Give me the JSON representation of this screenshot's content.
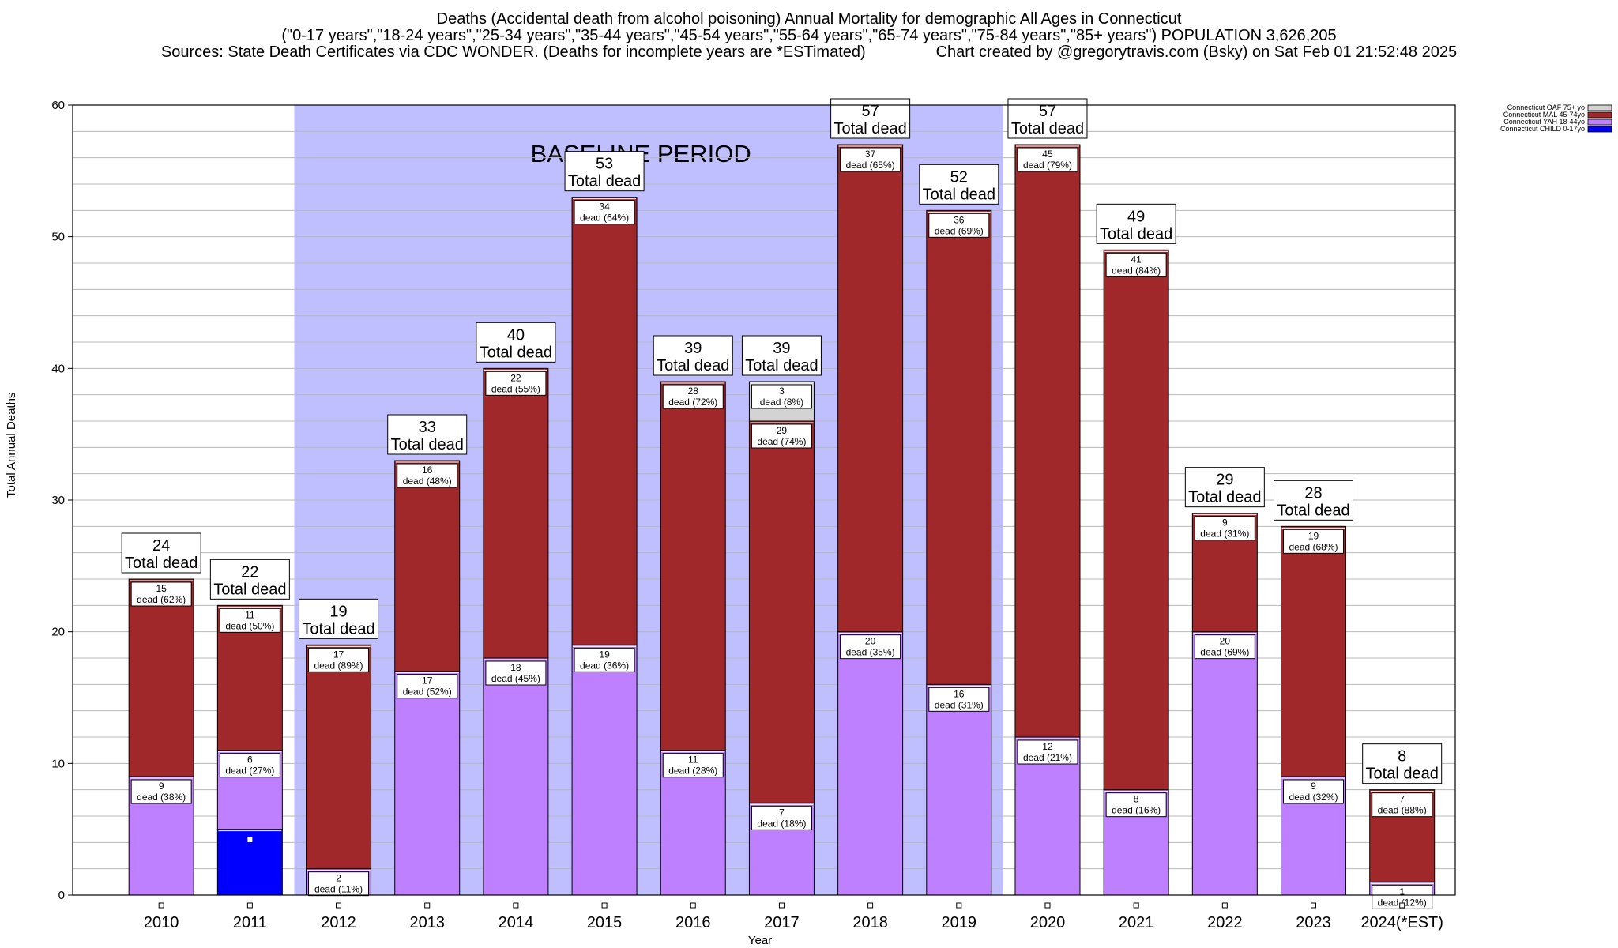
{
  "title_lines": [
    "Deaths (Accidental death from alcohol poisoning) Annual Mortality for demographic All Ages in Connecticut",
    "(\"0-17 years\",\"18-24 years\",\"25-34 years\",\"35-44 years\",\"45-54 years\",\"55-64 years\",\"65-74 years\",\"75-84 years\",\"85+ years\") POPULATION 3,626,205",
    "Sources: State Death Certificates via CDC WONDER. (Deaths for incomplete years are *ESTimated)                Chart created by @gregorytravis.com (Bsky) on Sat Feb 01 21:52:48 2025"
  ],
  "chart_data": {
    "type": "bar",
    "stacked": true,
    "xlabel": "Year",
    "ylabel": "Total Annual Deaths",
    "ylim": [
      0,
      60
    ],
    "yticks": [
      0,
      10,
      20,
      30,
      40,
      50,
      60
    ],
    "grid": true,
    "legend_position": "top-right",
    "baseline_label": "BASELINE PERIOD",
    "baseline_range": [
      "2012",
      "2019"
    ],
    "categories": [
      "2010",
      "2011",
      "2012",
      "2013",
      "2014",
      "2015",
      "2016",
      "2017",
      "2018",
      "2019",
      "2020",
      "2021",
      "2022",
      "2023",
      "2024(*EST)"
    ],
    "totals": [
      24,
      22,
      19,
      33,
      40,
      53,
      39,
      39,
      57,
      52,
      57,
      49,
      29,
      28,
      8
    ],
    "total_label": "Total dead",
    "series": [
      {
        "name": "Connecticut CHILD 0-17yo",
        "color": "#0000ff",
        "values": [
          0,
          5,
          0,
          0,
          0,
          0,
          0,
          0,
          0,
          0,
          0,
          0,
          0,
          0,
          0
        ],
        "labels": [
          null,
          null,
          null,
          null,
          null,
          null,
          null,
          null,
          null,
          null,
          null,
          null,
          null,
          null,
          null
        ]
      },
      {
        "name": "Connecticut YAH 18-44yo",
        "color": "#bf80ff",
        "values": [
          9,
          6,
          2,
          17,
          18,
          19,
          11,
          7,
          20,
          16,
          12,
          8,
          20,
          9,
          1
        ],
        "labels": [
          [
            "9",
            "dead (38%)"
          ],
          [
            "6",
            "dead (27%)"
          ],
          [
            "2",
            "dead (11%)"
          ],
          [
            "17",
            "dead (52%)"
          ],
          [
            "18",
            "dead (45%)"
          ],
          [
            "19",
            "dead (36%)"
          ],
          [
            "11",
            "dead (28%)"
          ],
          [
            "7",
            "dead (18%)"
          ],
          [
            "20",
            "dead (35%)"
          ],
          [
            "16",
            "dead (31%)"
          ],
          [
            "12",
            "dead (21%)"
          ],
          [
            "8",
            "dead (16%)"
          ],
          [
            "20",
            "dead (69%)"
          ],
          [
            "9",
            "dead (32%)"
          ],
          [
            "1",
            "dead (12%)"
          ]
        ]
      },
      {
        "name": "Connecticut MAL 45-74yo",
        "color": "#a0282a",
        "values": [
          15,
          11,
          17,
          16,
          22,
          34,
          28,
          29,
          37,
          36,
          45,
          41,
          9,
          19,
          7
        ],
        "labels": [
          [
            "15",
            "dead (62%)"
          ],
          [
            "11",
            "dead (50%)"
          ],
          [
            "17",
            "dead (89%)"
          ],
          [
            "16",
            "dead (48%)"
          ],
          [
            "22",
            "dead (55%)"
          ],
          [
            "34",
            "dead (64%)"
          ],
          [
            "28",
            "dead (72%)"
          ],
          [
            "29",
            "dead (74%)"
          ],
          [
            "37",
            "dead (65%)"
          ],
          [
            "36",
            "dead (69%)"
          ],
          [
            "45",
            "dead (79%)"
          ],
          [
            "41",
            "dead (84%)"
          ],
          [
            "9",
            "dead (31%)"
          ],
          [
            "19",
            "dead (68%)"
          ],
          [
            "7",
            "dead (88%)"
          ]
        ]
      },
      {
        "name": "Connecticut OAF 75+ yo",
        "color": "#d3d3d3",
        "values": [
          0,
          0,
          0,
          0,
          0,
          0,
          0,
          3,
          0,
          0,
          0,
          0,
          0,
          0,
          0
        ],
        "labels": [
          null,
          null,
          null,
          null,
          null,
          null,
          null,
          [
            "3",
            "dead (8%)"
          ],
          null,
          null,
          null,
          null,
          null,
          null,
          null
        ]
      }
    ]
  }
}
